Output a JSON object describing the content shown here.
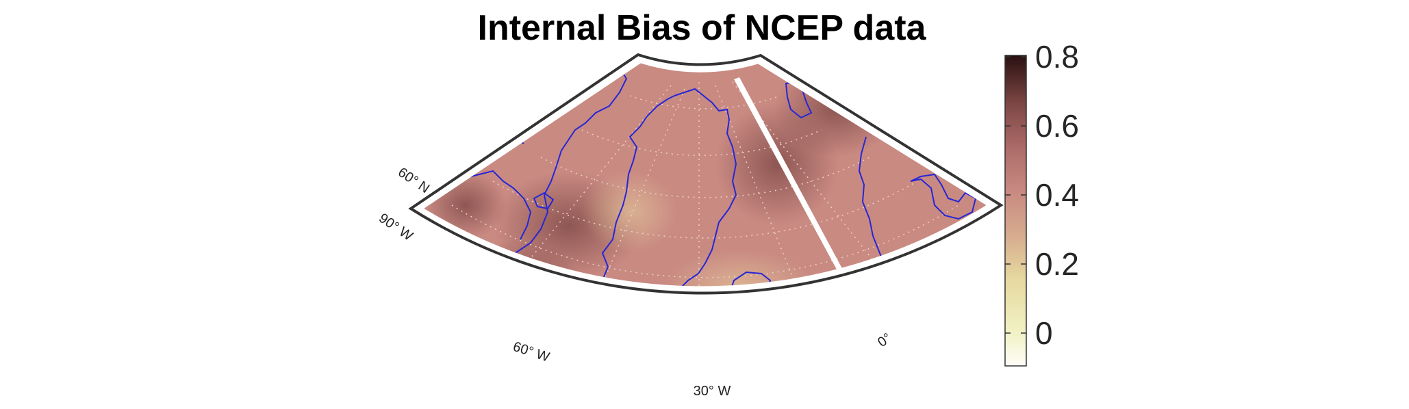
{
  "title": "Internal Bias of NCEP data",
  "grid_labels": {
    "lat_60n": "60° N",
    "lon_90w": "90° W",
    "lon_60w": "60° W",
    "lon_30w": "30° W",
    "lon_0": "0°"
  },
  "colorbar": {
    "ticks": [
      "0.8",
      "0.6",
      "0.4",
      "0.2",
      "0"
    ],
    "range": [
      -0.1,
      0.8
    ],
    "colormap": [
      "#fdfdf7",
      "#eef0b8",
      "#d9b48a",
      "#c38070",
      "#a5605d",
      "#6a3a39",
      "#2a1212"
    ]
  },
  "colors": {
    "field_base": "#c98a82",
    "field_dark": "#8f5553",
    "field_light": "#d6aa92",
    "coastline": "#2020d0",
    "frame": "#333333",
    "graticule": "#e8c8c0"
  }
}
